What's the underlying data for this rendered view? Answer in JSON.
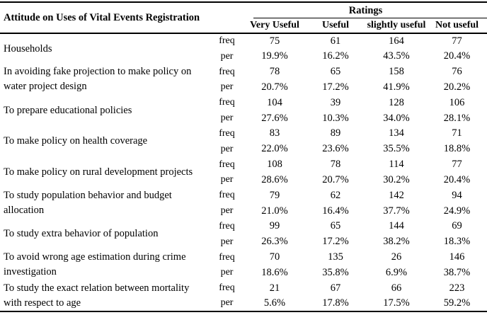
{
  "table": {
    "title": "Attitude on Uses of Vital Events Registration",
    "ratings_header": "Ratings",
    "columns": [
      "Very Useful",
      "Useful",
      "slightly useful",
      "Not useful"
    ],
    "freq_label": "freq",
    "per_label": "per",
    "rows": [
      {
        "label": "Households",
        "freq": [
          "75",
          "61",
          "164",
          "77"
        ],
        "per": [
          "19.9%",
          "16.2%",
          "43.5%",
          "20.4%"
        ]
      },
      {
        "label": "In avoiding fake projection to make policy on water project design",
        "freq": [
          "78",
          "65",
          "158",
          "76"
        ],
        "per": [
          "20.7%",
          "17.2%",
          "41.9%",
          "20.2%"
        ]
      },
      {
        "label": "To prepare educational policies",
        "freq": [
          "104",
          "39",
          "128",
          "106"
        ],
        "per": [
          "27.6%",
          "10.3%",
          "34.0%",
          "28.1%"
        ]
      },
      {
        "label": "To make policy on health coverage",
        "freq": [
          "83",
          "89",
          "134",
          "71"
        ],
        "per": [
          "22.0%",
          "23.6%",
          "35.5%",
          "18.8%"
        ]
      },
      {
        "label": "To make policy on rural development projects",
        "freq": [
          "108",
          "78",
          "114",
          "77"
        ],
        "per": [
          "28.6%",
          "20.7%",
          "30.2%",
          "20.4%"
        ]
      },
      {
        "label": "To study population behavior and budget allocation",
        "freq": [
          "79",
          "62",
          "142",
          "94"
        ],
        "per": [
          "21.0%",
          "16.4%",
          "37.7%",
          "24.9%"
        ]
      },
      {
        "label": "To study extra behavior of population",
        "freq": [
          "99",
          "65",
          "144",
          "69"
        ],
        "per": [
          "26.3%",
          "17.2%",
          "38.2%",
          "18.3%"
        ]
      },
      {
        "label": "To avoid wrong age estimation during crime investigation",
        "freq": [
          "70",
          "135",
          "26",
          "146"
        ],
        "per": [
          "18.6%",
          "35.8%",
          "6.9%",
          "38.7%"
        ]
      },
      {
        "label": "To study the exact relation between mortality with respect to age",
        "freq": [
          "21",
          "67",
          "66",
          "223"
        ],
        "per": [
          "5.6%",
          "17.8%",
          "17.5%",
          "59.2%"
        ]
      }
    ]
  },
  "colors": {
    "text": "#000000",
    "background": "#ffffff",
    "rule": "#000000"
  }
}
